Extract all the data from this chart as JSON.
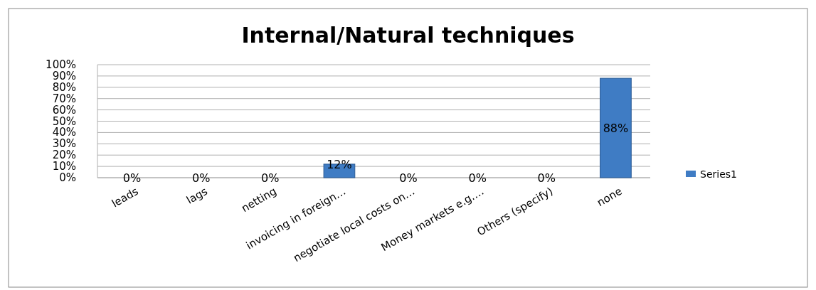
{
  "chart_data": {
    "type": "bar",
    "title": "Internal/Natural techniques",
    "categories": [
      "leads",
      "lags",
      "netting",
      "invoicing in foreign…",
      "negotiate local costs on…",
      "Money markets e.g.…",
      "Others (specify)",
      "none"
    ],
    "series": [
      {
        "name": "Series1",
        "color": "#3f7cc4",
        "values": [
          0,
          0,
          0,
          12,
          0,
          0,
          0,
          88
        ],
        "value_labels": [
          "0%",
          "0%",
          "0%",
          "12%",
          "0%",
          "0%",
          "0%",
          "88%"
        ]
      }
    ],
    "ylim": [
      0,
      100
    ],
    "yticks": [
      {
        "value": 0,
        "label": "0%"
      },
      {
        "value": 10,
        "label": "10%"
      },
      {
        "value": 20,
        "label": "20%"
      },
      {
        "value": 30,
        "label": "30%"
      },
      {
        "value": 40,
        "label": "40%"
      },
      {
        "value": 50,
        "label": "50%"
      },
      {
        "value": 60,
        "label": "60%"
      },
      {
        "value": 70,
        "label": "70%"
      },
      {
        "value": 80,
        "label": "80%"
      },
      {
        "value": 90,
        "label": "90%"
      },
      {
        "value": 100,
        "label": "100%"
      }
    ],
    "grid": "y",
    "legend": "right"
  }
}
